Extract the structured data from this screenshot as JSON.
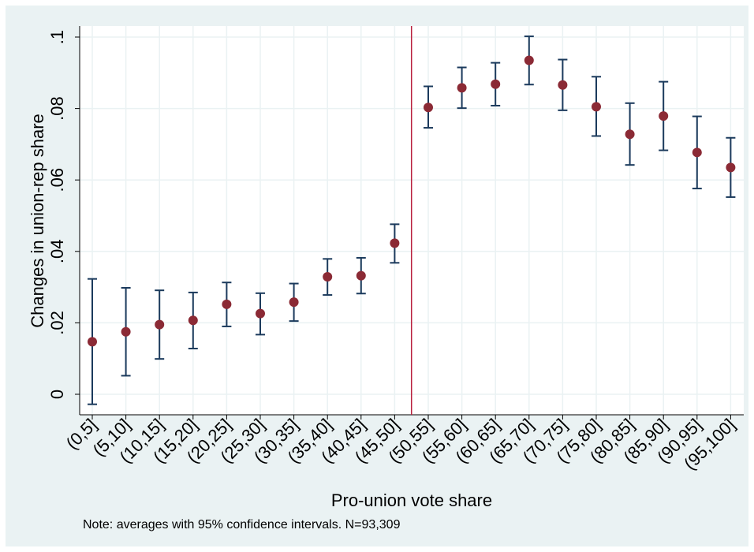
{
  "chart_data": {
    "type": "scatter",
    "title": "",
    "xlabel": "Pro-union vote share",
    "ylabel": "Changes in union-rep share",
    "note": "Note: averages with 95% confidence intervals. N=93,309",
    "categories": [
      "(0,5]",
      "(5,10]",
      "(10,15]",
      "(15,20]",
      "(20,25]",
      "(25,30]",
      "(30,35]",
      "(35,40]",
      "(40,45]",
      "(45,50]",
      "(50,55]",
      "(55,60]",
      "(60,65]",
      "(65,70]",
      "(70,75]",
      "(75,80]",
      "(80,85]",
      "(85,90]",
      "(90,95]",
      "(95,100]"
    ],
    "series": [
      {
        "values": [
          0.0147,
          0.0175,
          0.0195,
          0.0207,
          0.0252,
          0.0226,
          0.0258,
          0.0329,
          0.0332,
          0.0423,
          0.0803,
          0.0858,
          0.0868,
          0.0935,
          0.0866,
          0.0805,
          0.0728,
          0.0779,
          0.0677,
          0.0635
        ],
        "ci_low": [
          -0.0028,
          0.0052,
          0.0099,
          0.0128,
          0.019,
          0.0167,
          0.0205,
          0.0278,
          0.0282,
          0.0368,
          0.0746,
          0.0801,
          0.0808,
          0.0867,
          0.0795,
          0.0723,
          0.0642,
          0.0683,
          0.0576,
          0.0552
        ],
        "ci_high": [
          0.0323,
          0.0298,
          0.0291,
          0.0285,
          0.0313,
          0.0283,
          0.031,
          0.0379,
          0.0382,
          0.0476,
          0.0862,
          0.0915,
          0.0928,
          0.1002,
          0.0937,
          0.0889,
          0.0815,
          0.0875,
          0.0778,
          0.0718
        ]
      }
    ],
    "ylim": [
      -0.006,
      0.1035
    ],
    "yticks": [
      0,
      0.02,
      0.04,
      0.06,
      0.08,
      0.1
    ],
    "ytick_labels": [
      "0",
      ".02",
      ".04",
      ".06",
      ".08",
      ".1"
    ],
    "threshold_line": {
      "between": [
        "(45,50]",
        "(50,55]"
      ]
    },
    "grid": true,
    "colors": {
      "background": "#eaf2f3",
      "plot_area": "#ffffff",
      "marker": "#8b2a35",
      "error_bar": "#1b3a5c",
      "threshold": "#b81e3c",
      "grid": "#eaf2f3",
      "axis": "#000000"
    }
  }
}
